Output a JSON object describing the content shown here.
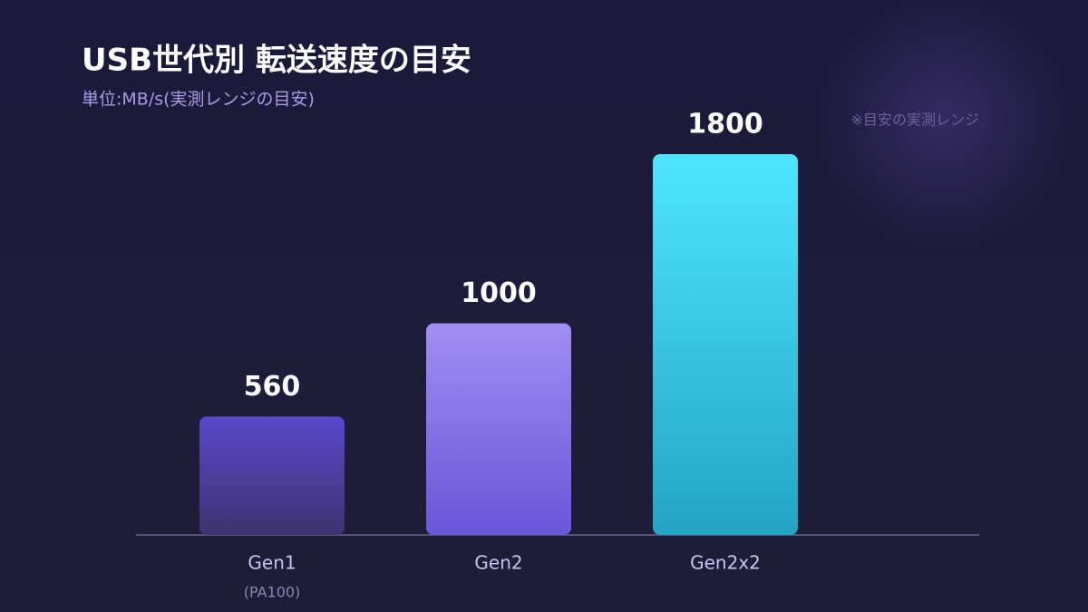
{
  "chart_data": {
    "type": "bar",
    "title": "USB世代別 転送速度の目安",
    "subtitle": "単位:MB/s(実測レンジの目安)",
    "annotation": "※目安の実測レンジ",
    "categories": [
      "Gen1",
      "Gen2",
      "Gen2x2"
    ],
    "category_notes": [
      "(PA100)",
      null,
      null
    ],
    "values": [
      560,
      1000,
      1800
    ],
    "colors": [
      [
        "#5a47cc",
        "#3e336f"
      ],
      [
        "#a08ef2",
        "#6a56d9"
      ],
      [
        "#4fe5ff",
        "#22a5c3"
      ]
    ]
  }
}
